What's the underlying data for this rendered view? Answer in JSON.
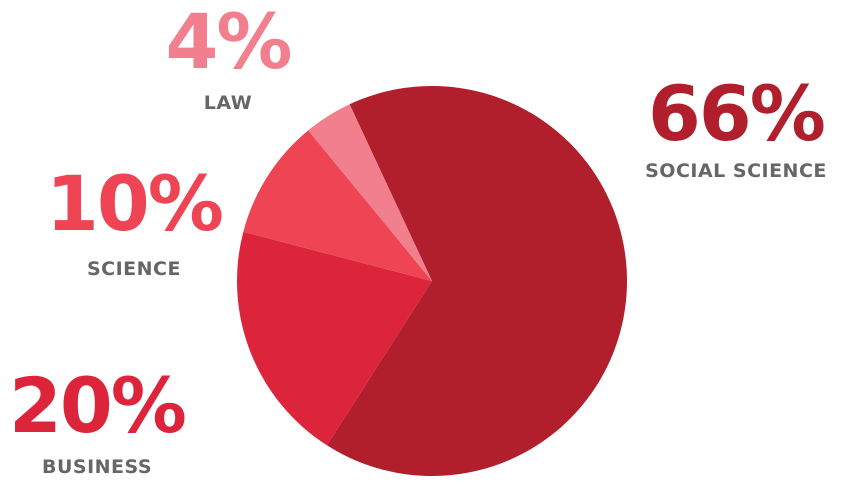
{
  "chart_data": {
    "type": "pie",
    "title": "",
    "slices": [
      {
        "label": "SOCIAL SCIENCE",
        "value": 66,
        "display": "66%",
        "color": "#B01F2B"
      },
      {
        "label": "BUSINESS",
        "value": 20,
        "display": "20%",
        "color": "#DC243B"
      },
      {
        "label": "SCIENCE",
        "value": 10,
        "display": "10%",
        "color": "#EE4453"
      },
      {
        "label": "LAW",
        "value": 4,
        "display": "4%",
        "color": "#F27F8D"
      }
    ]
  }
}
